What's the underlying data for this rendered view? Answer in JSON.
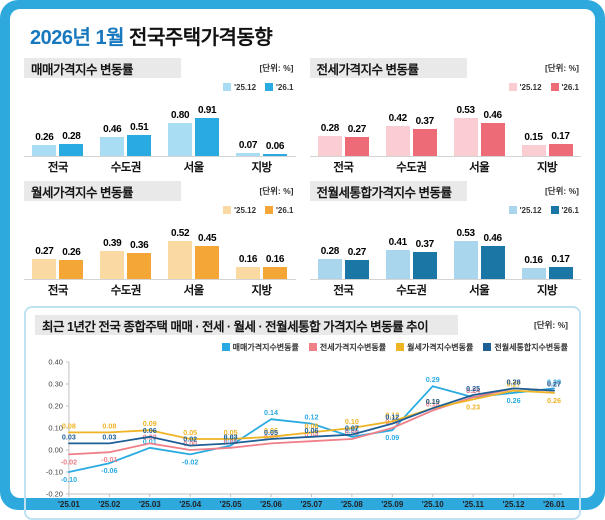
{
  "header": {
    "title_highlight": "2026년 1월",
    "title_rest": "전국주택가격동향"
  },
  "chart_data": [
    {
      "id": "sale",
      "type": "bar",
      "title": "매매가격지수 변동률",
      "unit": "[단위: %]",
      "categories": [
        "전국",
        "수도권",
        "서울",
        "지방"
      ],
      "series": [
        {
          "name": "'25.12",
          "color": "#a9ddf3",
          "values": [
            0.26,
            0.46,
            0.8,
            0.07
          ]
        },
        {
          "name": "'26.1",
          "color": "#29abe2",
          "values": [
            0.28,
            0.51,
            0.91,
            0.06
          ]
        }
      ]
    },
    {
      "id": "jeonse",
      "type": "bar",
      "title": "전세가격지수 변동률",
      "unit": "[단위: %]",
      "categories": [
        "전국",
        "수도권",
        "서울",
        "지방"
      ],
      "series": [
        {
          "name": "'25.12",
          "color": "#f9cdd2",
          "values": [
            0.28,
            0.42,
            0.53,
            0.15
          ]
        },
        {
          "name": "'26.1",
          "color": "#ec6b77",
          "values": [
            0.27,
            0.37,
            0.46,
            0.17
          ]
        }
      ]
    },
    {
      "id": "wolse",
      "type": "bar",
      "title": "월세가격지수 변동률",
      "unit": "[단위: %]",
      "categories": [
        "전국",
        "수도권",
        "서울",
        "지방"
      ],
      "series": [
        {
          "name": "'25.12",
          "color": "#fbd9a3",
          "values": [
            0.27,
            0.39,
            0.52,
            0.16
          ]
        },
        {
          "name": "'26.1",
          "color": "#f4a637",
          "values": [
            0.26,
            0.36,
            0.45,
            0.16
          ]
        }
      ]
    },
    {
      "id": "combined",
      "type": "bar",
      "title": "전월세통합가격지수 변동률",
      "unit": "[단위: %]",
      "categories": [
        "전국",
        "수도권",
        "서울",
        "지방"
      ],
      "series": [
        {
          "name": "'25.12",
          "color": "#a9d6ec",
          "values": [
            0.28,
            0.41,
            0.53,
            0.16
          ]
        },
        {
          "name": "'26.1",
          "color": "#1a76a4",
          "values": [
            0.27,
            0.37,
            0.46,
            0.17
          ]
        }
      ]
    },
    {
      "id": "trend",
      "type": "line",
      "title": "최근 1년간 전국 종합주택 매매 · 전세 · 월세 · 전월세통합 가격지수 변동률 추이",
      "unit": "[단위: %]",
      "legend_position": "top-right",
      "x": [
        "'25.01",
        "'25.02",
        "'25.03",
        "'25.04",
        "'25.05",
        "'25.06",
        "'25.07",
        "'25.08",
        "'25.09",
        "'25.10",
        "'25.11",
        "'25.12",
        "'26.01"
      ],
      "ylim": [
        -0.2,
        0.4
      ],
      "yticks": [
        "0.40",
        "0.30",
        "0.20",
        "0.10",
        "0.00",
        "-0.10",
        "-0.20"
      ],
      "series": [
        {
          "name": "매매가격지수변동률",
          "color": "#29abe2",
          "values": [
            -0.1,
            -0.06,
            0.01,
            -0.02,
            0.02,
            0.14,
            0.12,
            0.06,
            0.09,
            0.29,
            0.24,
            0.26,
            0.28
          ],
          "labels_below": [
            0,
            1,
            3,
            8,
            11
          ]
        },
        {
          "name": "전세가격지수변동률",
          "color": "#ef7f89",
          "values": [
            -0.02,
            -0.01,
            0.03,
            0.0,
            0.01,
            0.03,
            0.04,
            0.05,
            0.1,
            0.18,
            0.24,
            0.28,
            0.27
          ],
          "labels_below": [
            0,
            1
          ]
        },
        {
          "name": "월세가격지수변동률",
          "color": "#efb426",
          "values": [
            0.08,
            0.08,
            0.09,
            0.05,
            0.05,
            0.06,
            0.08,
            0.1,
            0.13,
            0.19,
            0.23,
            0.27,
            0.26
          ],
          "labels_below": [
            10,
            12
          ]
        },
        {
          "name": "전월세통합지수변동률",
          "color": "#1e5f96",
          "values": [
            0.03,
            0.03,
            0.06,
            0.02,
            0.03,
            0.05,
            0.06,
            0.07,
            0.12,
            0.19,
            0.25,
            0.28,
            0.27
          ],
          "labels_below": []
        }
      ]
    }
  ]
}
